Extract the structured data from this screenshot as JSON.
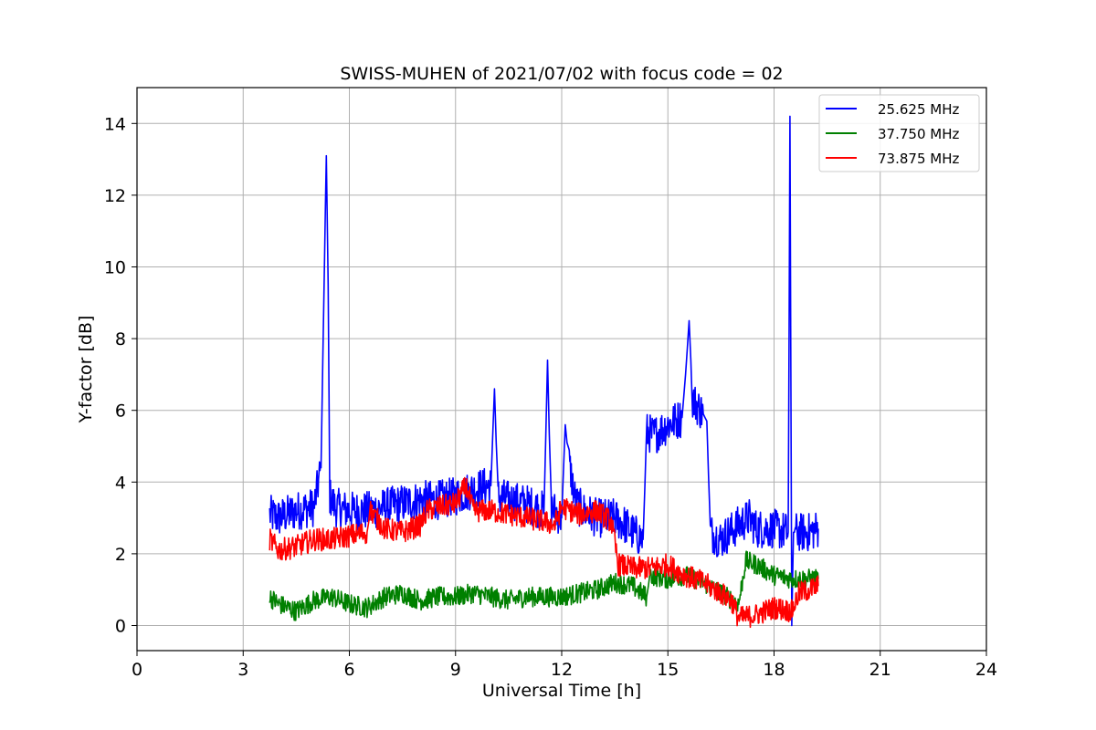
{
  "chart_data": {
    "type": "line",
    "title": "SWISS-MUHEN of 2021/07/02 with focus code = 02",
    "xlabel": "Universal Time [h]",
    "ylabel": "Y-factor [dB]",
    "xlim": [
      0,
      24
    ],
    "ylim": [
      -0.7,
      15
    ],
    "x_ticks": [
      0,
      3,
      6,
      9,
      12,
      15,
      18,
      21,
      24
    ],
    "y_ticks": [
      0,
      2,
      4,
      6,
      8,
      10,
      12,
      14
    ],
    "grid": true,
    "legend_position": "top-right",
    "colors": {
      "s1": "#0000ff",
      "s2": "#008000",
      "s3": "#ff0000"
    },
    "series": [
      {
        "name": "25.625 MHz",
        "color": "#0000ff",
        "x": [
          3.75,
          4.0,
          4.5,
          5.0,
          5.2,
          5.3,
          5.35,
          5.4,
          5.45,
          5.6,
          6.0,
          6.5,
          7.0,
          7.5,
          8.0,
          8.5,
          9.0,
          9.5,
          10.0,
          10.1,
          10.2,
          10.5,
          11.0,
          11.5,
          11.6,
          11.7,
          12.0,
          12.1,
          12.2,
          12.4,
          12.6,
          13.0,
          13.5,
          13.8,
          14.0,
          14.3,
          14.4,
          14.6,
          15.0,
          15.4,
          15.5,
          15.6,
          15.7,
          16.0,
          16.1,
          16.2,
          16.5,
          17.0,
          17.3,
          17.5,
          18.0,
          18.4,
          18.45,
          18.5,
          18.55,
          18.6,
          19.0,
          19.25
        ],
        "y": [
          3.1,
          3.0,
          3.2,
          3.3,
          4.4,
          10.3,
          13.1,
          9.5,
          3.6,
          3.3,
          3.2,
          3.2,
          3.3,
          3.4,
          3.5,
          3.5,
          3.6,
          3.8,
          3.9,
          6.6,
          3.6,
          3.5,
          3.4,
          3.2,
          7.4,
          3.3,
          3.0,
          5.6,
          4.6,
          3.4,
          3.2,
          3.0,
          3.0,
          2.8,
          2.6,
          2.4,
          5.4,
          5.3,
          5.6,
          5.8,
          7.0,
          8.5,
          6.3,
          5.9,
          5.7,
          2.6,
          2.4,
          2.8,
          3.0,
          2.7,
          2.7,
          2.6,
          14.2,
          0.0,
          2.6,
          2.6,
          2.6,
          2.7
        ]
      },
      {
        "name": "37.750 MHz",
        "color": "#008000",
        "x": [
          3.75,
          4.0,
          4.5,
          5.0,
          5.5,
          6.0,
          6.5,
          7.0,
          7.5,
          8.0,
          8.5,
          9.0,
          9.5,
          10.0,
          10.5,
          11.0,
          11.5,
          12.0,
          12.5,
          13.0,
          13.5,
          14.0,
          14.4,
          14.5,
          15.0,
          15.5,
          16.0,
          16.5,
          17.0,
          17.2,
          17.5,
          18.0,
          18.5,
          19.0,
          19.25
        ],
        "y": [
          0.8,
          0.6,
          0.4,
          0.7,
          0.8,
          0.6,
          0.5,
          0.8,
          0.9,
          0.7,
          0.8,
          0.8,
          0.9,
          0.8,
          0.7,
          0.8,
          0.8,
          0.8,
          0.9,
          1.0,
          1.2,
          1.1,
          0.8,
          1.4,
          1.3,
          1.4,
          1.2,
          0.9,
          0.6,
          1.8,
          1.7,
          1.4,
          1.3,
          1.3,
          1.3
        ]
      },
      {
        "name": "73.875 MHz",
        "color": "#ff0000",
        "x": [
          3.75,
          4.0,
          4.5,
          5.0,
          5.5,
          6.0,
          6.5,
          6.6,
          7.0,
          7.5,
          8.0,
          8.2,
          8.5,
          9.0,
          9.3,
          9.5,
          10.0,
          10.5,
          11.0,
          11.5,
          11.8,
          12.0,
          12.5,
          13.0,
          13.4,
          13.6,
          14.0,
          14.5,
          15.0,
          15.3,
          15.5,
          16.0,
          16.5,
          16.8,
          17.0,
          17.5,
          18.0,
          18.5,
          18.7,
          19.0,
          19.25
        ],
        "y": [
          2.4,
          2.1,
          2.2,
          2.4,
          2.4,
          2.5,
          2.6,
          3.2,
          2.7,
          2.6,
          2.8,
          3.2,
          3.3,
          3.4,
          3.9,
          3.2,
          3.2,
          3.1,
          3.0,
          2.9,
          2.8,
          3.3,
          3.1,
          3.2,
          2.9,
          1.7,
          1.6,
          1.6,
          1.7,
          1.5,
          1.4,
          1.2,
          0.9,
          0.7,
          0.2,
          0.3,
          0.5,
          0.4,
          0.9,
          1.0,
          1.1
        ]
      }
    ]
  }
}
